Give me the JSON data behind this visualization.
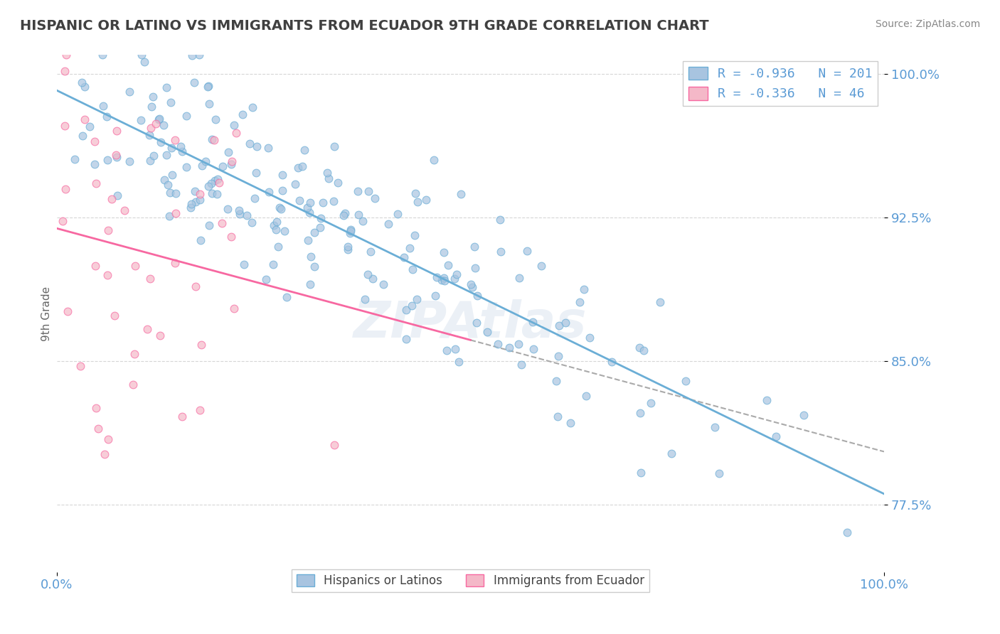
{
  "title": "HISPANIC OR LATINO VS IMMIGRANTS FROM ECUADOR 9TH GRADE CORRELATION CHART",
  "source_text": "Source: ZipAtlas.com",
  "xlabel": "",
  "ylabel": "9th Grade",
  "legend_label_blue": "Hispanics or Latinos",
  "legend_label_pink": "Immigrants from Ecuador",
  "R_blue": -0.936,
  "N_blue": 201,
  "R_pink": -0.336,
  "N_pink": 46,
  "xmin": 0.0,
  "xmax": 1.0,
  "ymin": 0.74,
  "ymax": 1.01,
  "yticks": [
    0.775,
    0.85,
    0.925,
    1.0
  ],
  "ytick_labels": [
    "77.5%",
    "85.0%",
    "92.5%",
    "100.0%"
  ],
  "xtick_labels": [
    "0.0%",
    "100.0%"
  ],
  "xticks": [
    0.0,
    1.0
  ],
  "color_blue": "#a8c4e0",
  "color_pink": "#f4b8c8",
  "color_line_blue": "#6baed6",
  "color_line_pink": "#f768a1",
  "color_title": "#404040",
  "color_axis_label": "#5b9bd5",
  "watermark": "ZIPAtlas",
  "grid_color": "#cccccc",
  "background_color": "#ffffff",
  "seed_blue": 42,
  "seed_pink": 7
}
